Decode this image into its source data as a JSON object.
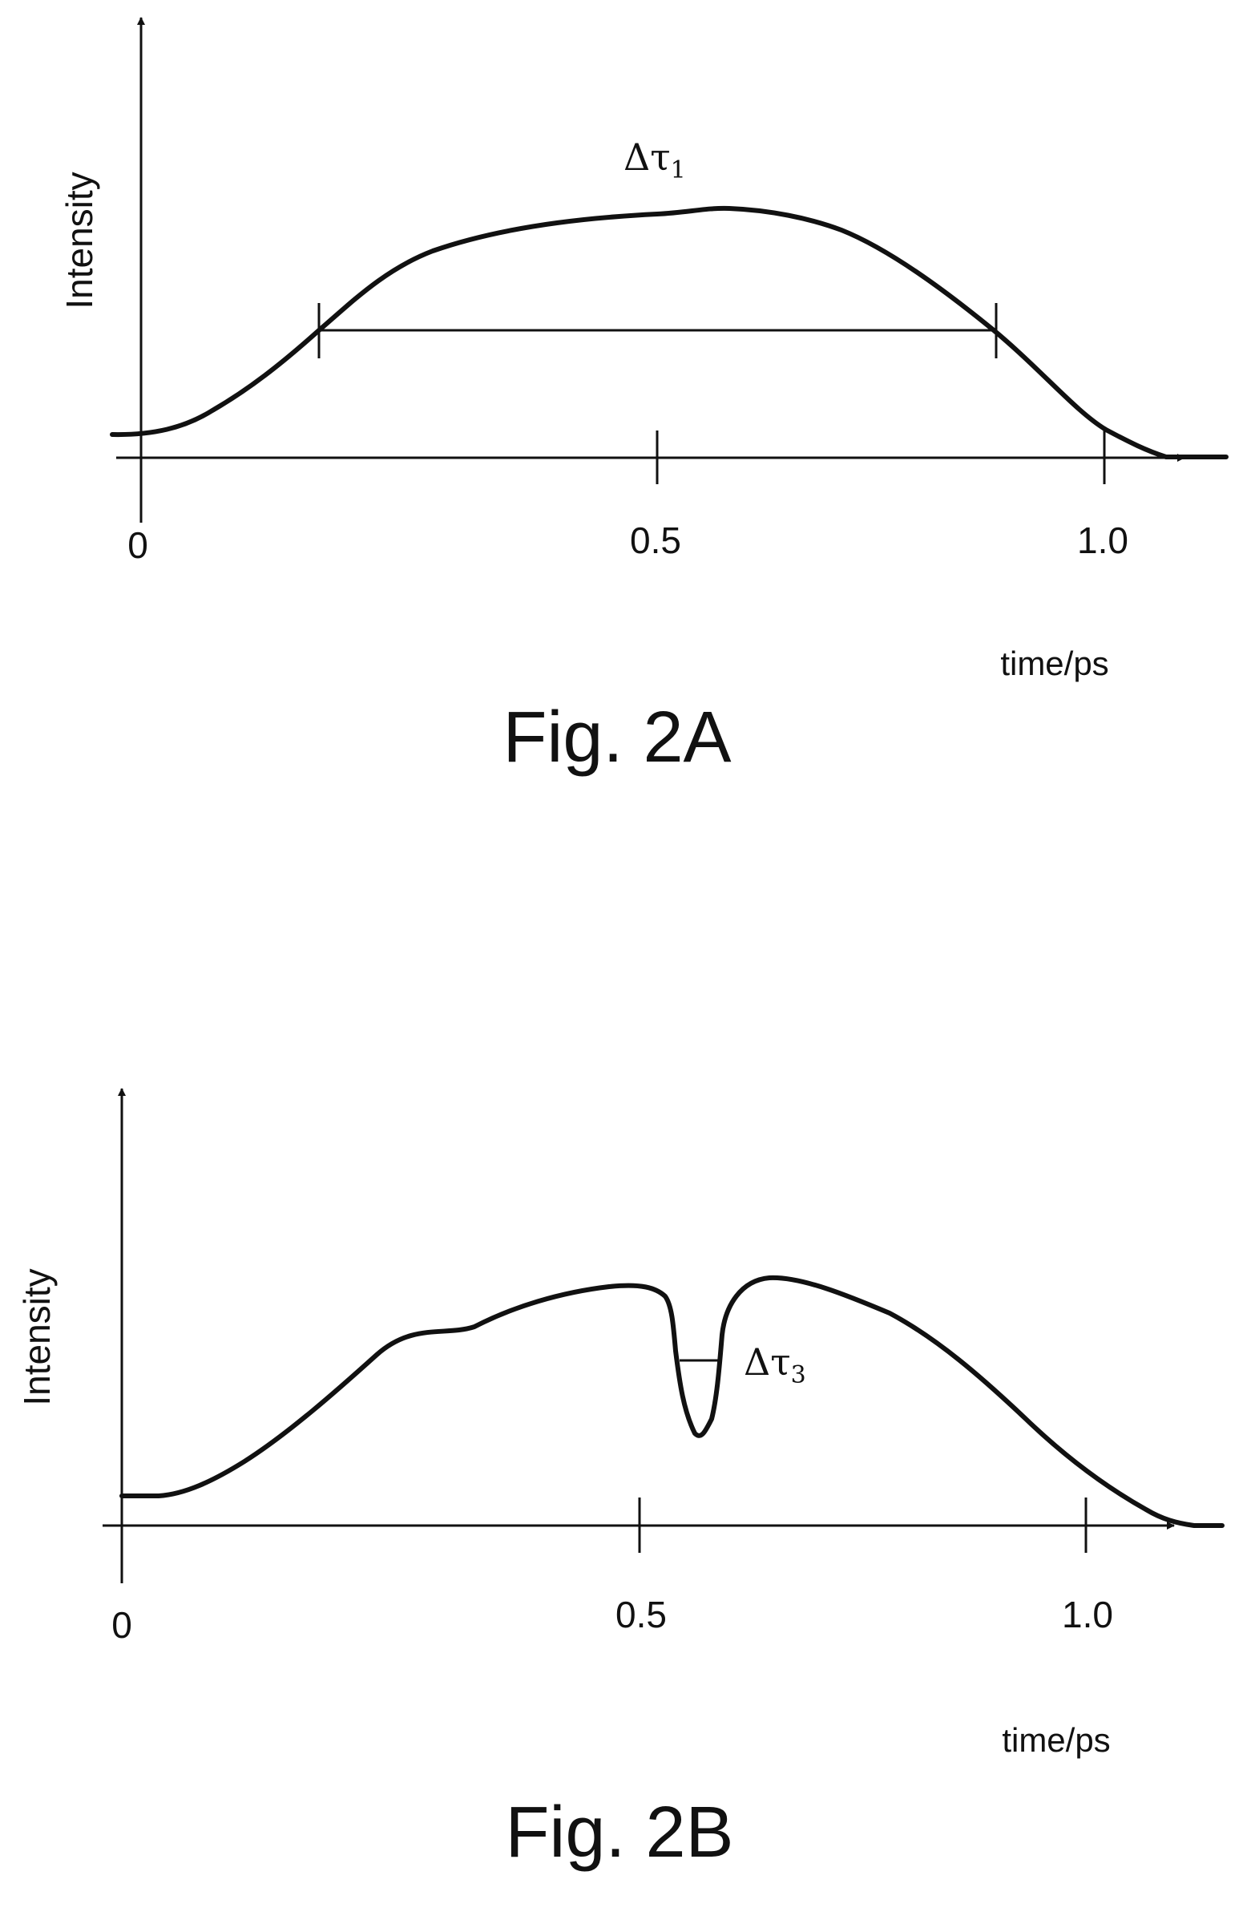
{
  "figures": [
    {
      "id": "fig2a",
      "caption": "Fig. 2A",
      "y_axis_label": "Intensity",
      "x_axis_label": "time/ps",
      "x_ticks": [
        "0",
        "0.5",
        "1.0"
      ],
      "annotation": {
        "symbol": "Δτ",
        "subscript": "1"
      }
    },
    {
      "id": "fig2b",
      "caption": "Fig. 2B",
      "y_axis_label": "Intensity",
      "x_axis_label": "time/ps",
      "x_ticks": [
        "0",
        "0.5",
        "1.0"
      ],
      "annotation": {
        "symbol": "Δτ",
        "subscript": "3"
      }
    }
  ],
  "style": {
    "stroke": "#111111",
    "background": "#ffffff"
  }
}
